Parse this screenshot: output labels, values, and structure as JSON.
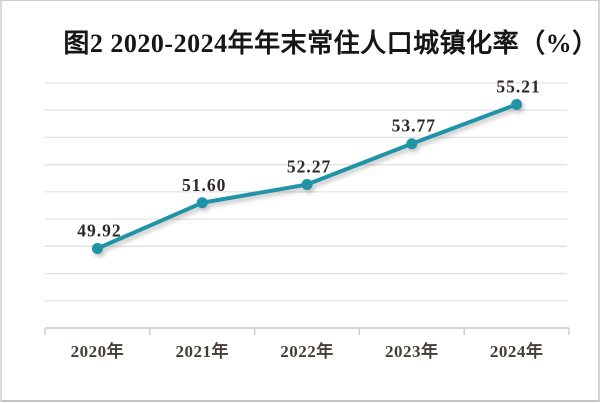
{
  "chart_data": {
    "type": "line",
    "title": "图2  2020-2024年年末常住人口城镇化率（%）",
    "xlabel": "",
    "ylabel": "",
    "categories": [
      "2020年",
      "2021年",
      "2022年",
      "2023年",
      "2024年"
    ],
    "series": [
      {
        "name": "年末常住人口城镇化率",
        "values": [
          49.92,
          51.6,
          52.27,
          53.77,
          55.21
        ],
        "value_labels": [
          "49.92",
          "51.60",
          "52.27",
          "53.77",
          "55.21"
        ]
      }
    ],
    "ylim": [
      47,
      56
    ],
    "grid_step": 1,
    "grid": "horizontal gridlines on, no y-axis tick labels",
    "legend_position": "none",
    "colors": {
      "line": "#1f94a6",
      "marker": "#1f94a6",
      "gridline": "#e4e0e0",
      "axis": "#cfc8c8",
      "value_label": "#2e2926",
      "category_label": "#463d38",
      "title": "#161616",
      "background": "#ffffff",
      "page_border": "#d2cece"
    }
  }
}
